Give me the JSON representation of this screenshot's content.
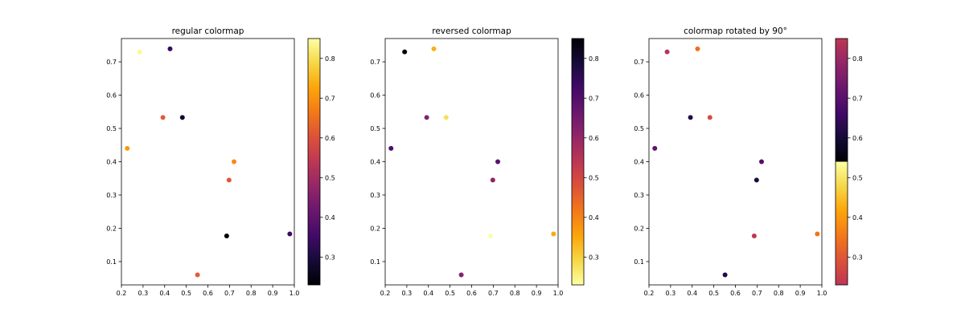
{
  "chart_data": [
    {
      "type": "scatter",
      "title": "regular colormap",
      "colormap": "inferno",
      "xlim": [
        0.2,
        1.0
      ],
      "ylim": [
        0.03,
        0.77
      ],
      "x_ticks": [
        "0.2",
        "0.3",
        "0.4",
        "0.5",
        "0.6",
        "0.7",
        "0.8",
        "0.9",
        "1.0"
      ],
      "y_ticks": [
        "0.1",
        "0.2",
        "0.3",
        "0.4",
        "0.5",
        "0.6",
        "0.7"
      ],
      "colorbar": {
        "range": [
          0.23,
          0.85
        ],
        "ticks": [
          "0.3",
          "0.4",
          "0.5",
          "0.6",
          "0.7",
          "0.8"
        ]
      },
      "points": [
        {
          "x": 0.284,
          "y": 0.73,
          "c": 0.84
        },
        {
          "x": 0.425,
          "y": 0.739,
          "c": 0.34
        },
        {
          "x": 0.392,
          "y": 0.533,
          "c": 0.62
        },
        {
          "x": 0.482,
          "y": 0.533,
          "c": 0.28
        },
        {
          "x": 0.227,
          "y": 0.44,
          "c": 0.71
        },
        {
          "x": 0.721,
          "y": 0.4,
          "c": 0.69
        },
        {
          "x": 0.698,
          "y": 0.345,
          "c": 0.61
        },
        {
          "x": 0.687,
          "y": 0.177,
          "c": 0.23
        },
        {
          "x": 0.979,
          "y": 0.183,
          "c": 0.35
        },
        {
          "x": 0.552,
          "y": 0.06,
          "c": 0.62
        }
      ]
    },
    {
      "type": "scatter",
      "title": "reversed colormap",
      "colormap": "inferno_r",
      "xlim": [
        0.2,
        1.0
      ],
      "ylim": [
        0.03,
        0.77
      ],
      "x_ticks": [
        "0.2",
        "0.3",
        "0.4",
        "0.5",
        "0.6",
        "0.7",
        "0.8",
        "0.9",
        "1.0"
      ],
      "y_ticks": [
        "0.1",
        "0.2",
        "0.3",
        "0.4",
        "0.5",
        "0.6",
        "0.7"
      ],
      "colorbar": {
        "range": [
          0.23,
          0.85
        ],
        "ticks": [
          "0.3",
          "0.4",
          "0.5",
          "0.6",
          "0.7",
          "0.8"
        ]
      },
      "points": [
        {
          "x": 0.29,
          "y": 0.73,
          "c": 0.84
        },
        {
          "x": 0.425,
          "y": 0.739,
          "c": 0.34
        },
        {
          "x": 0.392,
          "y": 0.533,
          "c": 0.62
        },
        {
          "x": 0.482,
          "y": 0.533,
          "c": 0.28
        },
        {
          "x": 0.227,
          "y": 0.44,
          "c": 0.71
        },
        {
          "x": 0.721,
          "y": 0.4,
          "c": 0.69
        },
        {
          "x": 0.698,
          "y": 0.345,
          "c": 0.61
        },
        {
          "x": 0.687,
          "y": 0.177,
          "c": 0.23
        },
        {
          "x": 0.979,
          "y": 0.183,
          "c": 0.35
        },
        {
          "x": 0.552,
          "y": 0.06,
          "c": 0.62
        }
      ]
    },
    {
      "type": "scatter",
      "title": "colormap rotated by 90°",
      "colormap": "inferno shifted by half its range",
      "xlim": [
        0.2,
        1.0
      ],
      "ylim": [
        0.03,
        0.77
      ],
      "x_ticks": [
        "0.2",
        "0.3",
        "0.4",
        "0.5",
        "0.6",
        "0.7",
        "0.8",
        "0.9",
        "1.0"
      ],
      "y_ticks": [
        "0.1",
        "0.2",
        "0.3",
        "0.4",
        "0.5",
        "0.6",
        "0.7"
      ],
      "colorbar": {
        "range": [
          0.23,
          0.85
        ],
        "ticks": [
          "0.3",
          "0.4",
          "0.5",
          "0.6",
          "0.7",
          "0.8"
        ]
      },
      "points": [
        {
          "x": 0.284,
          "y": 0.73,
          "c": 0.84
        },
        {
          "x": 0.425,
          "y": 0.739,
          "c": 0.34
        },
        {
          "x": 0.392,
          "y": 0.533,
          "c": 0.62
        },
        {
          "x": 0.482,
          "y": 0.533,
          "c": 0.28
        },
        {
          "x": 0.227,
          "y": 0.44,
          "c": 0.71
        },
        {
          "x": 0.721,
          "y": 0.4,
          "c": 0.69
        },
        {
          "x": 0.698,
          "y": 0.345,
          "c": 0.61
        },
        {
          "x": 0.687,
          "y": 0.177,
          "c": 0.23
        },
        {
          "x": 0.979,
          "y": 0.183,
          "c": 0.35
        },
        {
          "x": 0.552,
          "y": 0.06,
          "c": 0.62
        }
      ]
    }
  ]
}
